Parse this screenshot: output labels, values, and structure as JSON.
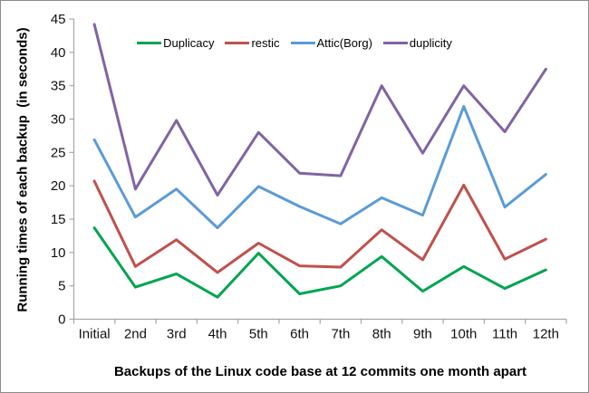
{
  "chart_data": {
    "type": "line",
    "title": "",
    "xlabel": "Backups of the Linux code base at 12 commits one month apart",
    "ylabel": "Running times of each backup  (in seconds)",
    "categories": [
      "Initial",
      "2nd",
      "3rd",
      "4th",
      "5th",
      "6th",
      "7th",
      "8th",
      "9th",
      "10th",
      "11th",
      "12th"
    ],
    "series": [
      {
        "name": "Duplicacy",
        "color": "#00A550",
        "values": [
          13.7,
          4.8,
          6.8,
          3.3,
          9.9,
          3.8,
          5.0,
          9.4,
          4.2,
          7.9,
          4.6,
          7.4
        ]
      },
      {
        "name": "restic",
        "color": "#C0504D",
        "values": [
          20.7,
          7.9,
          11.9,
          7.0,
          11.4,
          8.0,
          7.8,
          13.4,
          8.9,
          20.1,
          9.0,
          12.0
        ]
      },
      {
        "name": "Attic(Borg)",
        "color": "#5B9BD5",
        "values": [
          26.9,
          15.3,
          19.5,
          13.7,
          19.9,
          16.9,
          14.3,
          18.2,
          15.6,
          31.9,
          16.8,
          21.7
        ]
      },
      {
        "name": "duplicity",
        "color": "#8064A2",
        "values": [
          44.2,
          19.5,
          29.8,
          18.6,
          28.0,
          21.9,
          21.5,
          35.0,
          24.9,
          35.0,
          28.1,
          37.5
        ]
      }
    ],
    "ylim": [
      0,
      45
    ],
    "ytick_step": 5,
    "grid": false,
    "legend_position": "top",
    "axis_color": "#A6A6A6",
    "tick_label_color": "#111111",
    "line_width": 3
  }
}
